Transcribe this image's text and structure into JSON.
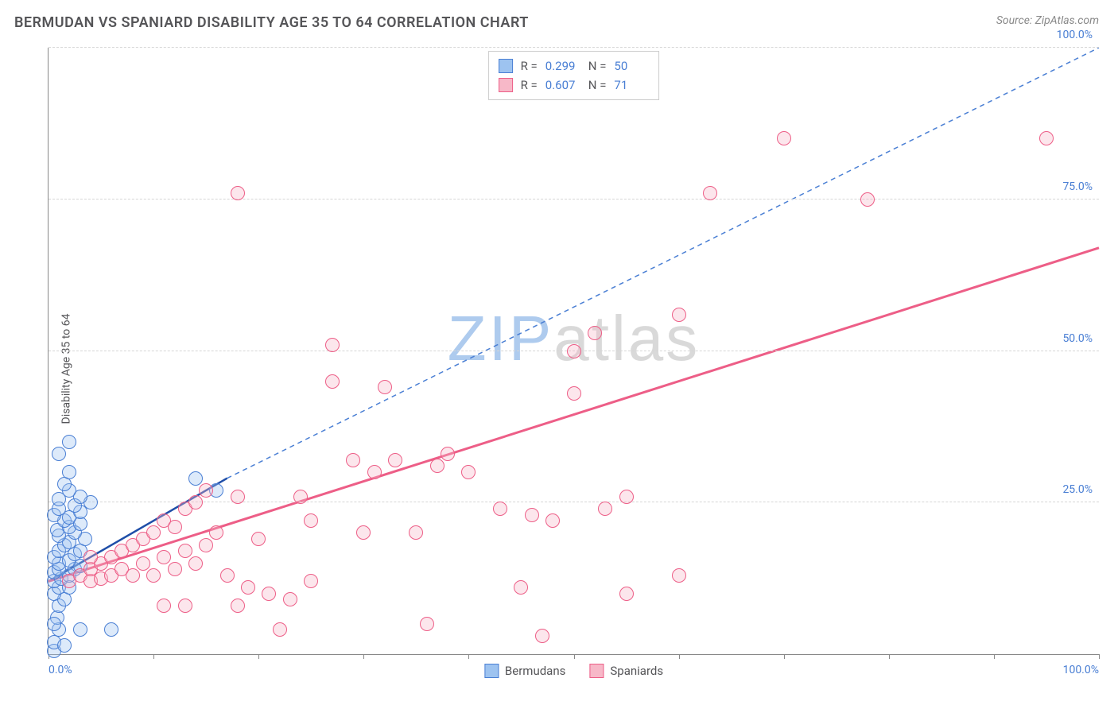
{
  "title": "BERMUDAN VS SPANIARD DISABILITY AGE 35 TO 64 CORRELATION CHART",
  "source_label": "Source: ",
  "source_name": "ZipAtlas.com",
  "ylabel": "Disability Age 35 to 64",
  "watermark_a": "ZIP",
  "watermark_b": "atlas",
  "watermark_color_a": "#aecbee",
  "watermark_color_b": "#d9d9d9",
  "chart": {
    "type": "scatter",
    "background_color": "#ffffff",
    "grid_color": "#d6d6d6",
    "axis_color": "#888888",
    "tick_label_color": "#4a7fd4",
    "xlim": [
      0,
      100
    ],
    "ylim": [
      0,
      100
    ],
    "xticks": [
      0,
      10,
      20,
      30,
      40,
      50,
      60,
      70,
      80,
      90,
      100
    ],
    "xtick_labels": {
      "0": "0.0%",
      "100": "100.0%"
    },
    "yticks": [
      25,
      50,
      75,
      100
    ],
    "ytick_labels": {
      "25": "25.0%",
      "50": "50.0%",
      "75": "75.0%",
      "100": "100.0%"
    },
    "point_radius": 9,
    "point_stroke_width": 1.5,
    "point_fill_opacity": 0.35,
    "series": [
      {
        "name": "Bermudans",
        "color_fill": "#9dc3f0",
        "color_stroke": "#4a7fd4",
        "R": "0.299",
        "N": "50",
        "trend_solid": {
          "x1": 0,
          "y1": 12,
          "x2": 17,
          "y2": 29,
          "color": "#1f4ea8",
          "width": 2.5
        },
        "trend_dash": {
          "x1": 17,
          "y1": 29,
          "x2": 100,
          "y2": 100,
          "color": "#4a7fd4",
          "width": 1.5,
          "dash": "6,5"
        },
        "points": [
          [
            0.5,
            0.5
          ],
          [
            0.5,
            2
          ],
          [
            1,
            4
          ],
          [
            0.8,
            6
          ],
          [
            1,
            8
          ],
          [
            1.5,
            9
          ],
          [
            0.5,
            10
          ],
          [
            1,
            11
          ],
          [
            2,
            11
          ],
          [
            0.5,
            12
          ],
          [
            1.2,
            12.5
          ],
          [
            2,
            13
          ],
          [
            0.5,
            13.5
          ],
          [
            1,
            14
          ],
          [
            2.5,
            14
          ],
          [
            3,
            14.5
          ],
          [
            1,
            15
          ],
          [
            2,
            15.5
          ],
          [
            0.5,
            16
          ],
          [
            2.5,
            16.5
          ],
          [
            1,
            17
          ],
          [
            3,
            17
          ],
          [
            1.5,
            18
          ],
          [
            2,
            18.5
          ],
          [
            3.5,
            19
          ],
          [
            1,
            19.5
          ],
          [
            2.5,
            20
          ],
          [
            0.8,
            20.5
          ],
          [
            2,
            21
          ],
          [
            3,
            21.5
          ],
          [
            1.5,
            22
          ],
          [
            2,
            22.5
          ],
          [
            0.5,
            23
          ],
          [
            3,
            23.5
          ],
          [
            1,
            24
          ],
          [
            2.5,
            24.5
          ],
          [
            4,
            25
          ],
          [
            1,
            25.5
          ],
          [
            3,
            26
          ],
          [
            2,
            27
          ],
          [
            1.5,
            28
          ],
          [
            2,
            30
          ],
          [
            1,
            33
          ],
          [
            2,
            35
          ],
          [
            6,
            4
          ],
          [
            3,
            4
          ],
          [
            16,
            27
          ],
          [
            14,
            29
          ],
          [
            1.5,
            1.5
          ],
          [
            0.5,
            5
          ]
        ]
      },
      {
        "name": "Spaniards",
        "color_fill": "#f7b8c8",
        "color_stroke": "#ed5e87",
        "R": "0.607",
        "N": "71",
        "trend_solid": {
          "x1": 0,
          "y1": 12,
          "x2": 100,
          "y2": 67,
          "color": "#ed5e87",
          "width": 3
        },
        "points": [
          [
            2,
            12
          ],
          [
            3,
            13
          ],
          [
            4,
            12
          ],
          [
            4,
            14
          ],
          [
            5,
            12.5
          ],
          [
            5,
            15
          ],
          [
            6,
            13
          ],
          [
            6,
            16
          ],
          [
            7,
            14
          ],
          [
            7,
            17
          ],
          [
            8,
            13
          ],
          [
            8,
            18
          ],
          [
            9,
            15
          ],
          [
            9,
            19
          ],
          [
            10,
            13
          ],
          [
            10,
            20
          ],
          [
            11,
            16
          ],
          [
            11,
            22
          ],
          [
            12,
            14
          ],
          [
            12,
            21
          ],
          [
            13,
            17
          ],
          [
            13,
            24
          ],
          [
            14,
            15
          ],
          [
            14,
            25
          ],
          [
            15,
            18
          ],
          [
            15,
            27
          ],
          [
            16,
            20
          ],
          [
            17,
            13
          ],
          [
            18,
            8
          ],
          [
            18,
            26
          ],
          [
            19,
            11
          ],
          [
            20,
            19
          ],
          [
            21,
            10
          ],
          [
            22,
            4
          ],
          [
            23,
            9
          ],
          [
            24,
            26
          ],
          [
            25,
            12
          ],
          [
            25,
            22
          ],
          [
            27,
            45
          ],
          [
            29,
            32
          ],
          [
            30,
            20
          ],
          [
            31,
            30
          ],
          [
            32,
            44
          ],
          [
            33,
            32
          ],
          [
            35,
            20
          ],
          [
            36,
            5
          ],
          [
            37,
            31
          ],
          [
            38,
            33
          ],
          [
            40,
            30
          ],
          [
            43,
            24
          ],
          [
            45,
            11
          ],
          [
            46,
            23
          ],
          [
            47,
            3
          ],
          [
            50,
            50
          ],
          [
            48,
            22
          ],
          [
            50,
            43
          ],
          [
            52,
            53
          ],
          [
            53,
            24
          ],
          [
            55,
            26
          ],
          [
            55,
            10
          ],
          [
            60,
            13
          ],
          [
            60,
            56
          ],
          [
            63,
            76
          ],
          [
            70,
            85
          ],
          [
            78,
            75
          ],
          [
            95,
            85
          ],
          [
            18,
            76
          ],
          [
            27,
            51
          ],
          [
            11,
            8
          ],
          [
            13,
            8
          ],
          [
            4,
            16
          ]
        ]
      }
    ]
  },
  "legend_top": [
    {
      "swatch_fill": "#9dc3f0",
      "swatch_stroke": "#4a7fd4",
      "r_label": "R =",
      "r_val": "0.299",
      "n_label": "N =",
      "n_val": "50"
    },
    {
      "swatch_fill": "#f7b8c8",
      "swatch_stroke": "#ed5e87",
      "r_label": "R =",
      "r_val": "0.607",
      "n_label": "N =",
      "n_val": "71"
    }
  ],
  "legend_bottom": [
    {
      "swatch_fill": "#9dc3f0",
      "swatch_stroke": "#4a7fd4",
      "label": "Bermudans"
    },
    {
      "swatch_fill": "#f7b8c8",
      "swatch_stroke": "#ed5e87",
      "label": "Spaniards"
    }
  ]
}
